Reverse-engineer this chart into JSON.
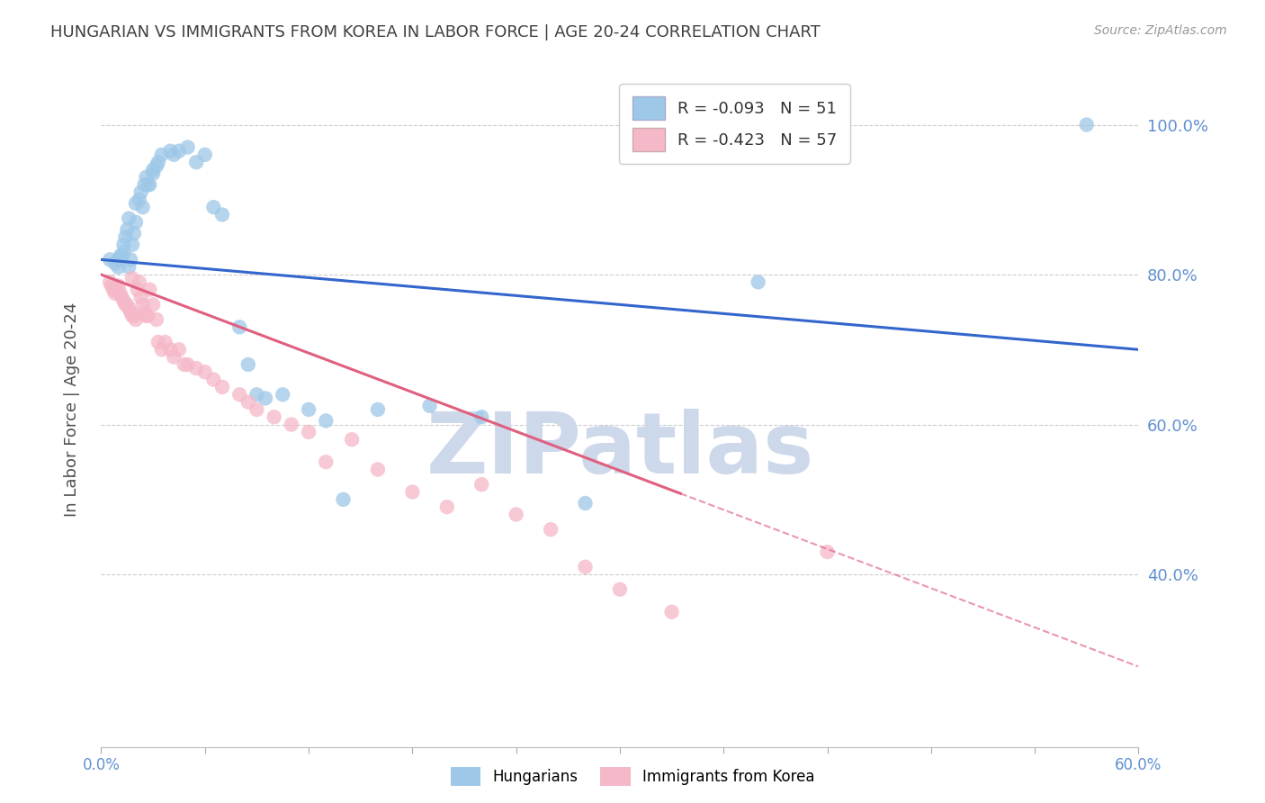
{
  "title": "HUNGARIAN VS IMMIGRANTS FROM KOREA IN LABOR FORCE | AGE 20-24 CORRELATION CHART",
  "source": "Source: ZipAtlas.com",
  "ylabel": "In Labor Force | Age 20-24",
  "xlim": [
    0.0,
    0.6
  ],
  "ylim": [
    0.17,
    1.07
  ],
  "yticks": [
    0.4,
    0.6,
    0.8,
    1.0
  ],
  "ytick_labels": [
    "40.0%",
    "60.0%",
    "80.0%",
    "100.0%"
  ],
  "xtick_labels_shown": [
    "0.0%",
    "60.0%"
  ],
  "xtick_shown_positions": [
    0.0,
    0.6
  ],
  "xtick_all_positions": [
    0.0,
    0.06,
    0.12,
    0.18,
    0.24,
    0.3,
    0.36,
    0.42,
    0.48,
    0.54,
    0.6
  ],
  "blue_R": -0.093,
  "blue_N": 51,
  "pink_R": -0.423,
  "pink_N": 57,
  "blue_color": "#9ec8e8",
  "pink_color": "#f5b8c8",
  "blue_line_color": "#3366cc",
  "pink_line_color": "#e06080",
  "blue_line_y0": 0.82,
  "blue_line_y1": 0.7,
  "pink_line_y0": 0.8,
  "pink_line_solid_end_x": 0.335,
  "pink_line_solid_end_y": 0.508,
  "watermark": "ZIPatlas",
  "watermark_color": "#cdd8ea",
  "legend_label_blue": "Hungarians",
  "legend_label_pink": "Immigrants from Korea",
  "blue_scatter_x": [
    0.005,
    0.008,
    0.01,
    0.01,
    0.011,
    0.012,
    0.013,
    0.013,
    0.014,
    0.015,
    0.016,
    0.016,
    0.017,
    0.018,
    0.019,
    0.02,
    0.02,
    0.022,
    0.023,
    0.024,
    0.025,
    0.026,
    0.027,
    0.028,
    0.03,
    0.03,
    0.032,
    0.033,
    0.035,
    0.04,
    0.042,
    0.045,
    0.05,
    0.055,
    0.06,
    0.065,
    0.07,
    0.08,
    0.085,
    0.09,
    0.095,
    0.105,
    0.12,
    0.13,
    0.14,
    0.16,
    0.19,
    0.22,
    0.28,
    0.38,
    0.57
  ],
  "blue_scatter_y": [
    0.82,
    0.815,
    0.81,
    0.82,
    0.825,
    0.825,
    0.83,
    0.84,
    0.85,
    0.86,
    0.875,
    0.81,
    0.82,
    0.84,
    0.855,
    0.87,
    0.895,
    0.9,
    0.91,
    0.89,
    0.92,
    0.93,
    0.92,
    0.92,
    0.935,
    0.94,
    0.945,
    0.95,
    0.96,
    0.965,
    0.96,
    0.965,
    0.97,
    0.95,
    0.96,
    0.89,
    0.88,
    0.73,
    0.68,
    0.64,
    0.635,
    0.64,
    0.62,
    0.605,
    0.5,
    0.62,
    0.625,
    0.61,
    0.495,
    0.79,
    1.0
  ],
  "pink_scatter_x": [
    0.005,
    0.006,
    0.007,
    0.008,
    0.009,
    0.01,
    0.011,
    0.012,
    0.013,
    0.014,
    0.015,
    0.016,
    0.017,
    0.018,
    0.018,
    0.019,
    0.02,
    0.021,
    0.022,
    0.023,
    0.024,
    0.025,
    0.026,
    0.027,
    0.028,
    0.03,
    0.032,
    0.033,
    0.035,
    0.037,
    0.04,
    0.042,
    0.045,
    0.048,
    0.05,
    0.055,
    0.06,
    0.065,
    0.07,
    0.08,
    0.085,
    0.09,
    0.1,
    0.11,
    0.12,
    0.13,
    0.145,
    0.16,
    0.18,
    0.2,
    0.22,
    0.24,
    0.26,
    0.28,
    0.3,
    0.33,
    0.42
  ],
  "pink_scatter_y": [
    0.79,
    0.785,
    0.78,
    0.775,
    0.78,
    0.785,
    0.775,
    0.77,
    0.765,
    0.76,
    0.76,
    0.755,
    0.75,
    0.745,
    0.795,
    0.745,
    0.74,
    0.78,
    0.79,
    0.77,
    0.76,
    0.75,
    0.745,
    0.745,
    0.78,
    0.76,
    0.74,
    0.71,
    0.7,
    0.71,
    0.7,
    0.69,
    0.7,
    0.68,
    0.68,
    0.675,
    0.67,
    0.66,
    0.65,
    0.64,
    0.63,
    0.62,
    0.61,
    0.6,
    0.59,
    0.55,
    0.58,
    0.54,
    0.51,
    0.49,
    0.52,
    0.48,
    0.46,
    0.41,
    0.38,
    0.35,
    0.43
  ],
  "grid_color": "#cccccc",
  "background_color": "#ffffff",
  "title_color": "#404040",
  "axis_label_color": "#505050",
  "tick_color": "#6090d0",
  "right_axis_color": "#6090d0"
}
